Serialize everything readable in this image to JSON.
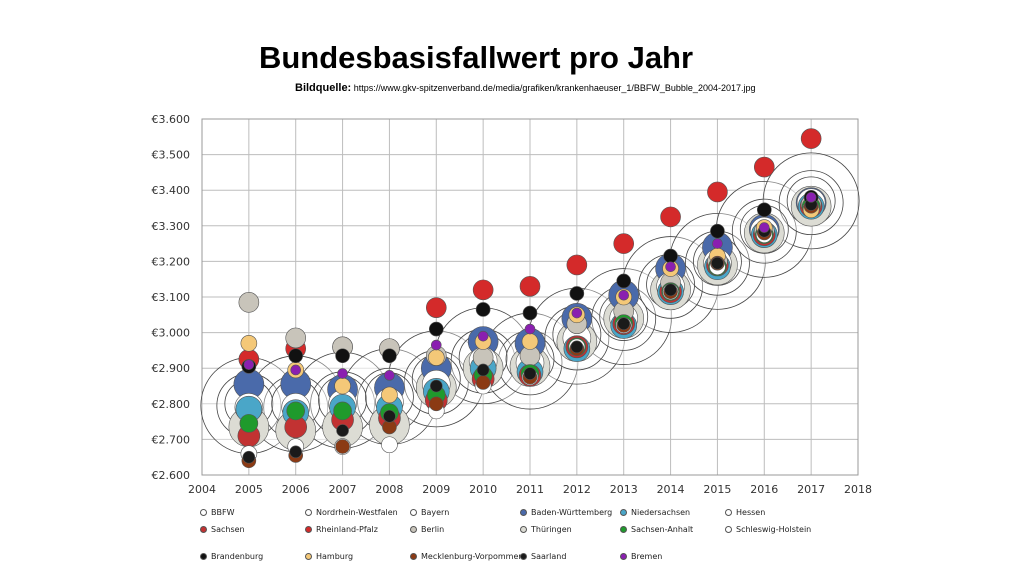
{
  "header": {
    "title": "Bundesbasisfallwert pro Jahr",
    "source_label": "Bildquelle:",
    "source_url": "https://www.gkv-spitzenverband.de/media/grafiken/krankenhaeuser_1/BBFW_Bubble_2004-2017.jpg"
  },
  "colors": {
    "BBFW": "#ffffff",
    "Nordrhein-Westfalen": "#ffffff",
    "Bayern": "#ffffff",
    "Baden-Württemberg": "#4a6aaa",
    "Niedersachsen": "#4aa6c8",
    "Hessen": "#ffffff",
    "Sachsen": "#c23232",
    "Rheinland-Pfalz": "#d42a2a",
    "Berlin": "#c8c4ba",
    "Thüringen": "#dcdcd4",
    "Sachsen-Anhalt": "#1f9a2c",
    "Schleswig-Holstein": "#ffffff",
    "Brandenburg": "#111111",
    "Hamburg": "#f4c878",
    "Mecklenburg-Vorpommern": "#8b3a14",
    "Saarland": "#1a1a1a",
    "Bremen": "#8a1fb0"
  },
  "chart_data": {
    "type": "scatter",
    "title": "Bundesbasisfallwert pro Jahr",
    "xlabel": "",
    "ylabel": "",
    "xlim": [
      2004,
      2018
    ],
    "ylim": [
      2600,
      3600
    ],
    "x_ticks": [
      "2004",
      "2005",
      "2006",
      "2007",
      "2008",
      "2009",
      "2010",
      "2011",
      "2012",
      "2013",
      "2014",
      "2015",
      "2016",
      "2017",
      "2018"
    ],
    "y_ticks": [
      "€2.600",
      "€2.700",
      "€2.800",
      "€2.900",
      "€3.000",
      "€3.100",
      "€3.200",
      "€3.300",
      "€3.400",
      "€3.500",
      "€3.600"
    ],
    "grid": true,
    "legend_position": "bottom",
    "series": [
      {
        "name": "BBFW",
        "values": [
          2795,
          2800,
          2810,
          2820,
          2870,
          2935,
          2920,
          2990,
          3045,
          3135,
          3200,
          3290,
          3370
        ]
      },
      {
        "name": "Nordrhein-Westfalen",
        "values": [
          2795,
          2790,
          2800,
          2810,
          2860,
          2920,
          2915,
          2985,
          3040,
          3130,
          3195,
          3285,
          3365
        ]
      },
      {
        "name": "Bayern",
        "values": [
          2800,
          2800,
          2810,
          2820,
          2870,
          2930,
          2925,
          2995,
          3045,
          3135,
          3200,
          3290,
          3370
        ]
      },
      {
        "name": "Baden-Württemberg",
        "values": [
          2855,
          2855,
          2840,
          2845,
          2900,
          2975,
          2970,
          3040,
          3105,
          3180,
          3240,
          3290,
          3365
        ]
      },
      {
        "name": "Niedersachsen",
        "values": [
          2785,
          2775,
          2790,
          2790,
          2835,
          2900,
          2890,
          2955,
          3020,
          3115,
          3185,
          3275,
          3355
        ]
      },
      {
        "name": "Hessen",
        "values": [
          2790,
          2790,
          2800,
          2805,
          2855,
          2920,
          2915,
          2985,
          3040,
          3130,
          3195,
          3285,
          3365
        ]
      },
      {
        "name": "Sachsen",
        "values": [
          2710,
          2735,
          2755,
          2760,
          2810,
          2870,
          2880,
          2960,
          3025,
          3115,
          3190,
          3275,
          3355
        ]
      },
      {
        "name": "Rheinland-Pfalz",
        "values": [
          2925,
          2955,
          2960,
          2955,
          3070,
          3120,
          3130,
          3190,
          3250,
          3325,
          3395,
          3465,
          3545
        ]
      },
      {
        "name": "Berlin",
        "values": [
          3085,
          2985,
          2960,
          2955,
          2935,
          2930,
          2935,
          3025,
          3060,
          3140,
          3200,
          3285,
          3360
        ]
      },
      {
        "name": "Thüringen",
        "values": [
          2735,
          2725,
          2735,
          2740,
          2845,
          2900,
          2905,
          2975,
          3040,
          3120,
          3190,
          3280,
          3355
        ]
      },
      {
        "name": "Sachsen-Anhalt",
        "values": [
          2745,
          2780,
          2780,
          2775,
          2825,
          2880,
          2885,
          2960,
          3025,
          3115,
          3185,
          3275,
          3355
        ]
      },
      {
        "name": "Schleswig-Holstein",
        "values": [
          2660,
          2680,
          2680,
          2685,
          2780,
          2850,
          2875,
          2960,
          3020,
          3115,
          3185,
          3275,
          3350
        ]
      },
      {
        "name": "Brandenburg",
        "values": [
          2905,
          2935,
          2935,
          2935,
          3010,
          3065,
          3055,
          3110,
          3145,
          3215,
          3285,
          3345,
          3380
        ]
      },
      {
        "name": "Hamburg",
        "values": [
          2970,
          2895,
          2850,
          2825,
          2930,
          2975,
          2975,
          3050,
          3100,
          3180,
          3215,
          3295,
          3345
        ]
      },
      {
        "name": "Mecklenburg-Vorpommern",
        "values": [
          2640,
          2655,
          2680,
          2735,
          2800,
          2860,
          2875,
          2955,
          3020,
          3115,
          3195,
          3280,
          3355
        ]
      },
      {
        "name": "Saarland",
        "values": [
          2650,
          2665,
          2725,
          2765,
          2850,
          2895,
          2885,
          2960,
          3025,
          3120,
          3195,
          3285,
          3360
        ]
      },
      {
        "name": "Bremen",
        "values": [
          2910,
          2895,
          2885,
          2880,
          2965,
          2990,
          3010,
          3055,
          3105,
          3185,
          3250,
          3295,
          3380
        ]
      }
    ],
    "x": [
      2005,
      2006,
      2007,
      2008,
      2009,
      2010,
      2011,
      2012,
      2013,
      2014,
      2015,
      2016,
      2017
    ]
  },
  "legend": {
    "items": [
      "BBFW",
      "Nordrhein-Westfalen",
      "Bayern",
      "Baden-Württemberg",
      "Niedersachsen",
      "Hessen",
      "Sachsen",
      "Rheinland-Pfalz",
      "Berlin",
      "Thüringen",
      "Sachsen-Anhalt",
      "Schleswig-Holstein",
      "Brandenburg",
      "Hamburg",
      "Mecklenburg-Vorpommern",
      "Saarland",
      "Bremen"
    ]
  }
}
